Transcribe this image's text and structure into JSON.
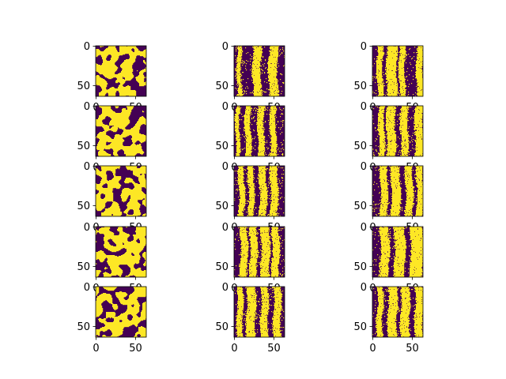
{
  "figure": {
    "background": "#ffffff",
    "colormap": {
      "low": "#440154",
      "high": "#fde725"
    }
  },
  "chart_data": {
    "type": "heatmap",
    "layout": {
      "rows": 5,
      "cols": 3
    },
    "image_size": [
      64,
      64
    ],
    "x_ticks": [
      0,
      50
    ],
    "y_ticks": [
      0,
      50
    ],
    "x_tick_labels": [
      "0",
      "50"
    ],
    "y_tick_labels": [
      "0",
      "50"
    ],
    "grid": false,
    "panels": [
      {
        "row": 0,
        "col": 0,
        "pattern": "spots",
        "seed": 11,
        "yellow_fraction": 0.6
      },
      {
        "row": 0,
        "col": 1,
        "pattern": "stripes",
        "seed": 12,
        "stripes": [
          [
            4,
            8
          ],
          [
            24,
            33
          ],
          [
            44,
            54
          ]
        ]
      },
      {
        "row": 0,
        "col": 2,
        "pattern": "stripes",
        "seed": 13,
        "stripes": [
          [
            6,
            12
          ],
          [
            18,
            30
          ],
          [
            34,
            40
          ],
          [
            56,
            63
          ]
        ]
      },
      {
        "row": 1,
        "col": 0,
        "pattern": "spots",
        "seed": 21,
        "yellow_fraction": 0.6
      },
      {
        "row": 1,
        "col": 1,
        "pattern": "stripes",
        "seed": 22,
        "stripes": [
          [
            2,
            6
          ],
          [
            14,
            20
          ],
          [
            30,
            37
          ],
          [
            46,
            52
          ]
        ]
      },
      {
        "row": 1,
        "col": 2,
        "pattern": "stripes",
        "seed": 23,
        "stripes": [
          [
            8,
            14
          ],
          [
            18,
            28
          ],
          [
            36,
            44
          ],
          [
            54,
            63
          ]
        ]
      },
      {
        "row": 2,
        "col": 0,
        "pattern": "spots",
        "seed": 31,
        "yellow_fraction": 0.62
      },
      {
        "row": 2,
        "col": 1,
        "pattern": "stripes",
        "seed": 32,
        "stripes": [
          [
            6,
            12
          ],
          [
            18,
            24
          ],
          [
            32,
            40
          ],
          [
            46,
            54
          ]
        ]
      },
      {
        "row": 2,
        "col": 2,
        "pattern": "stripes",
        "seed": 33,
        "stripes": [
          [
            10,
            18
          ],
          [
            24,
            34
          ],
          [
            42,
            50
          ],
          [
            56,
            63
          ]
        ]
      },
      {
        "row": 3,
        "col": 0,
        "pattern": "spots",
        "seed": 41,
        "yellow_fraction": 0.62
      },
      {
        "row": 3,
        "col": 1,
        "pattern": "stripes",
        "seed": 42,
        "stripes": [
          [
            8,
            16
          ],
          [
            20,
            28
          ],
          [
            34,
            44
          ],
          [
            48,
            56
          ]
        ]
      },
      {
        "row": 3,
        "col": 2,
        "pattern": "stripes",
        "seed": 43,
        "stripes": [
          [
            10,
            20
          ],
          [
            28,
            40
          ],
          [
            48,
            63
          ]
        ]
      },
      {
        "row": 4,
        "col": 0,
        "pattern": "spots",
        "seed": 51,
        "yellow_fraction": 0.58
      },
      {
        "row": 4,
        "col": 1,
        "pattern": "stripes",
        "seed": 52,
        "stripes": [
          [
            4,
            10
          ],
          [
            16,
            26
          ],
          [
            34,
            42
          ],
          [
            50,
            58
          ]
        ]
      },
      {
        "row": 4,
        "col": 2,
        "pattern": "stripes",
        "seed": 53,
        "stripes": [
          [
            6,
            12
          ],
          [
            20,
            30
          ],
          [
            36,
            46
          ],
          [
            54,
            63
          ]
        ]
      }
    ]
  }
}
